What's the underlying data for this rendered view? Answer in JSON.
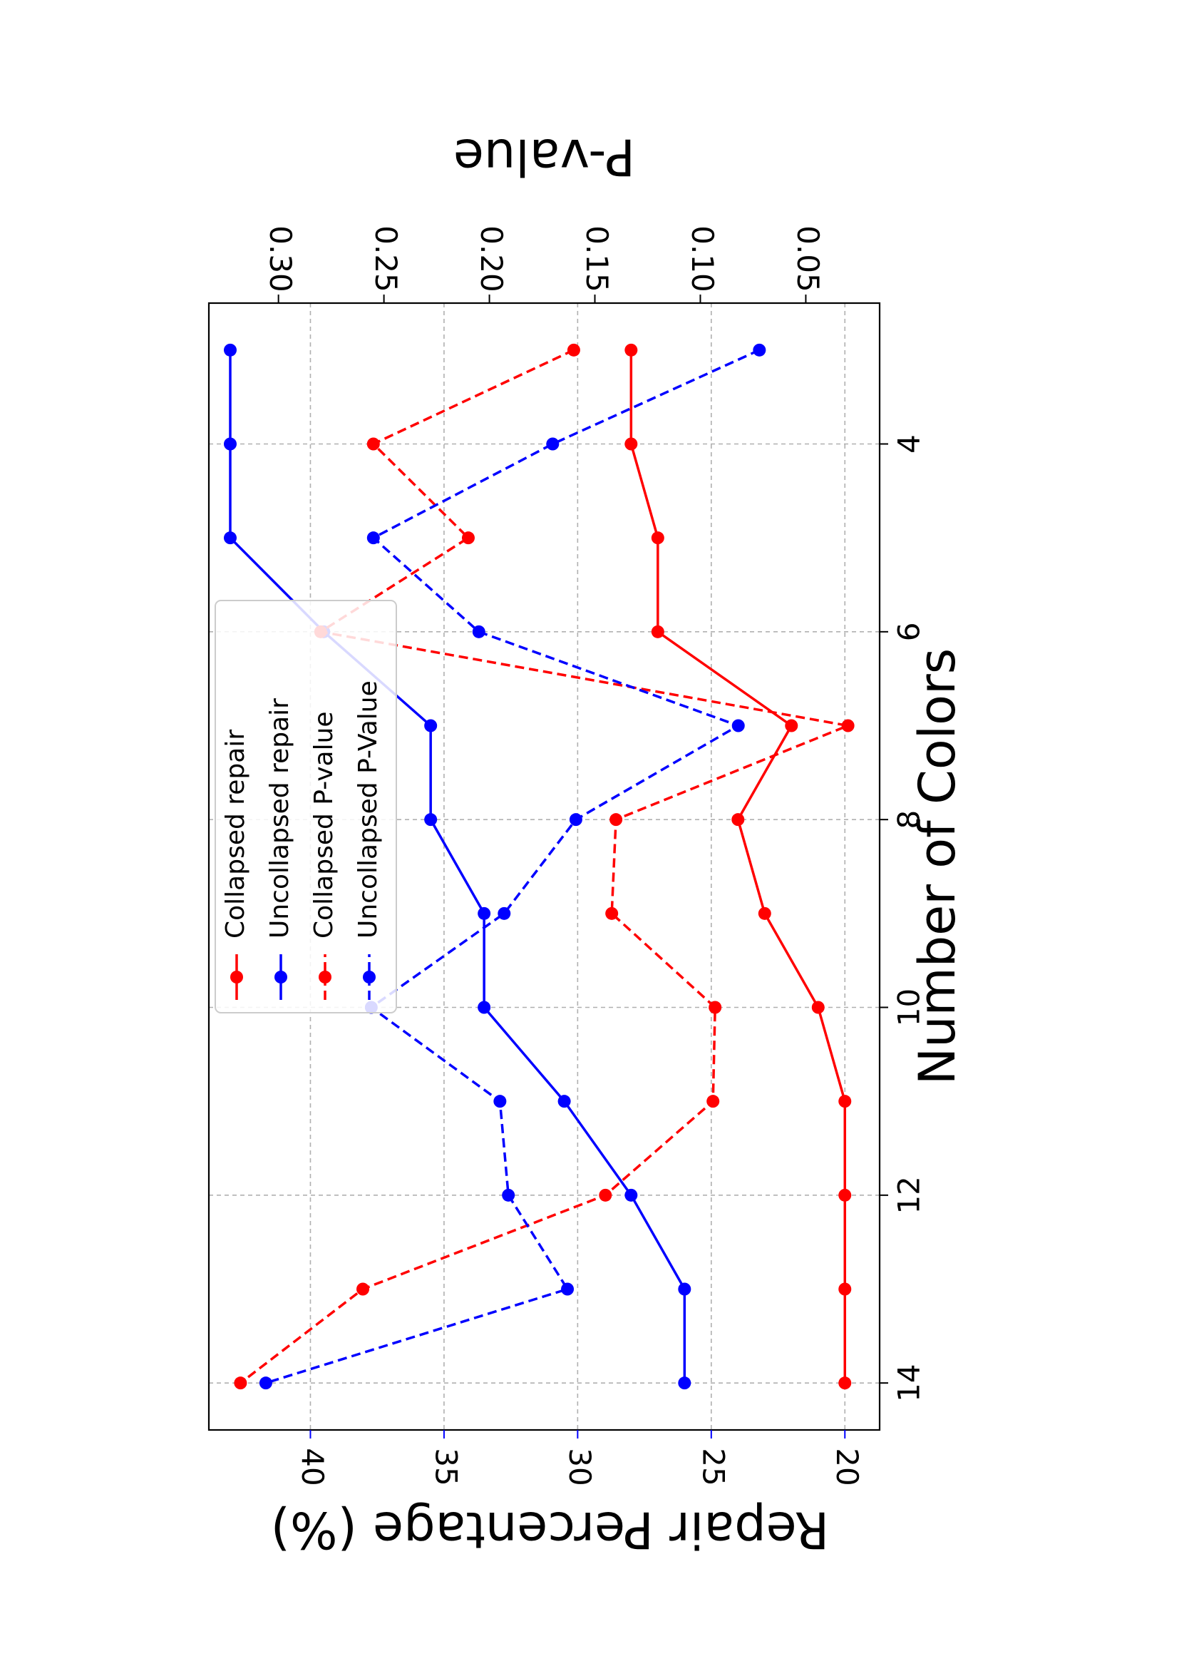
{
  "chart_data": {
    "type": "line",
    "title": "",
    "xlabel": "Number of Colors",
    "ylabel_left": "Repair Percentage (%)",
    "ylabel_right": "P-value",
    "x": [
      3,
      4,
      5,
      6,
      7,
      8,
      9,
      10,
      11,
      12,
      13,
      14
    ],
    "xlim": [
      2.5,
      14.5
    ],
    "xticks": [
      "4",
      "6",
      "8",
      "10",
      "12",
      "14"
    ],
    "xtick_values": [
      4,
      6,
      8,
      10,
      12,
      14
    ],
    "ylim_left": [
      18.7,
      43.8
    ],
    "yticks_left": [
      "20",
      "25",
      "30",
      "35",
      "40"
    ],
    "ytick_values_left": [
      20,
      25,
      30,
      35,
      40
    ],
    "ylim_right": [
      0.015,
      0.333
    ],
    "yticks_right": [
      "0.05",
      "0.10",
      "0.15",
      "0.20",
      "0.25",
      "0.30"
    ],
    "ytick_values_right": [
      0.05,
      0.1,
      0.15,
      0.2,
      0.25,
      0.3
    ],
    "grid": true,
    "orientation": "rotated 90 degrees",
    "legend_position": "lower left (upper right of page)",
    "series": [
      {
        "name": "Collapsed repair",
        "axis": "left",
        "color": "#ff0000",
        "style": "solid",
        "values": [
          28.0,
          28.0,
          27.0,
          27.0,
          22.0,
          24.0,
          23.0,
          21.0,
          20.0,
          20.0,
          20.0,
          20.0
        ]
      },
      {
        "name": "Uncollapsed repair",
        "axis": "left",
        "color": "#0000ff",
        "style": "solid",
        "values": [
          43.0,
          43.0,
          43.0,
          39.5,
          35.5,
          35.5,
          33.5,
          33.5,
          30.5,
          28.0,
          26.0,
          26.0
        ]
      },
      {
        "name": "Collapsed P-value",
        "axis": "right",
        "color": "#ff0000",
        "style": "dashed",
        "values": [
          0.16,
          0.255,
          0.21,
          0.28,
          0.03,
          0.14,
          0.142,
          0.093,
          0.094,
          0.145,
          0.26,
          0.318
        ]
      },
      {
        "name": "Uncollapsed P-Value",
        "axis": "right",
        "color": "#0000ff",
        "style": "dashed",
        "values": [
          0.072,
          0.17,
          0.255,
          0.205,
          0.082,
          0.159,
          0.193,
          0.256,
          0.195,
          0.191,
          0.163,
          0.306
        ]
      }
    ]
  }
}
